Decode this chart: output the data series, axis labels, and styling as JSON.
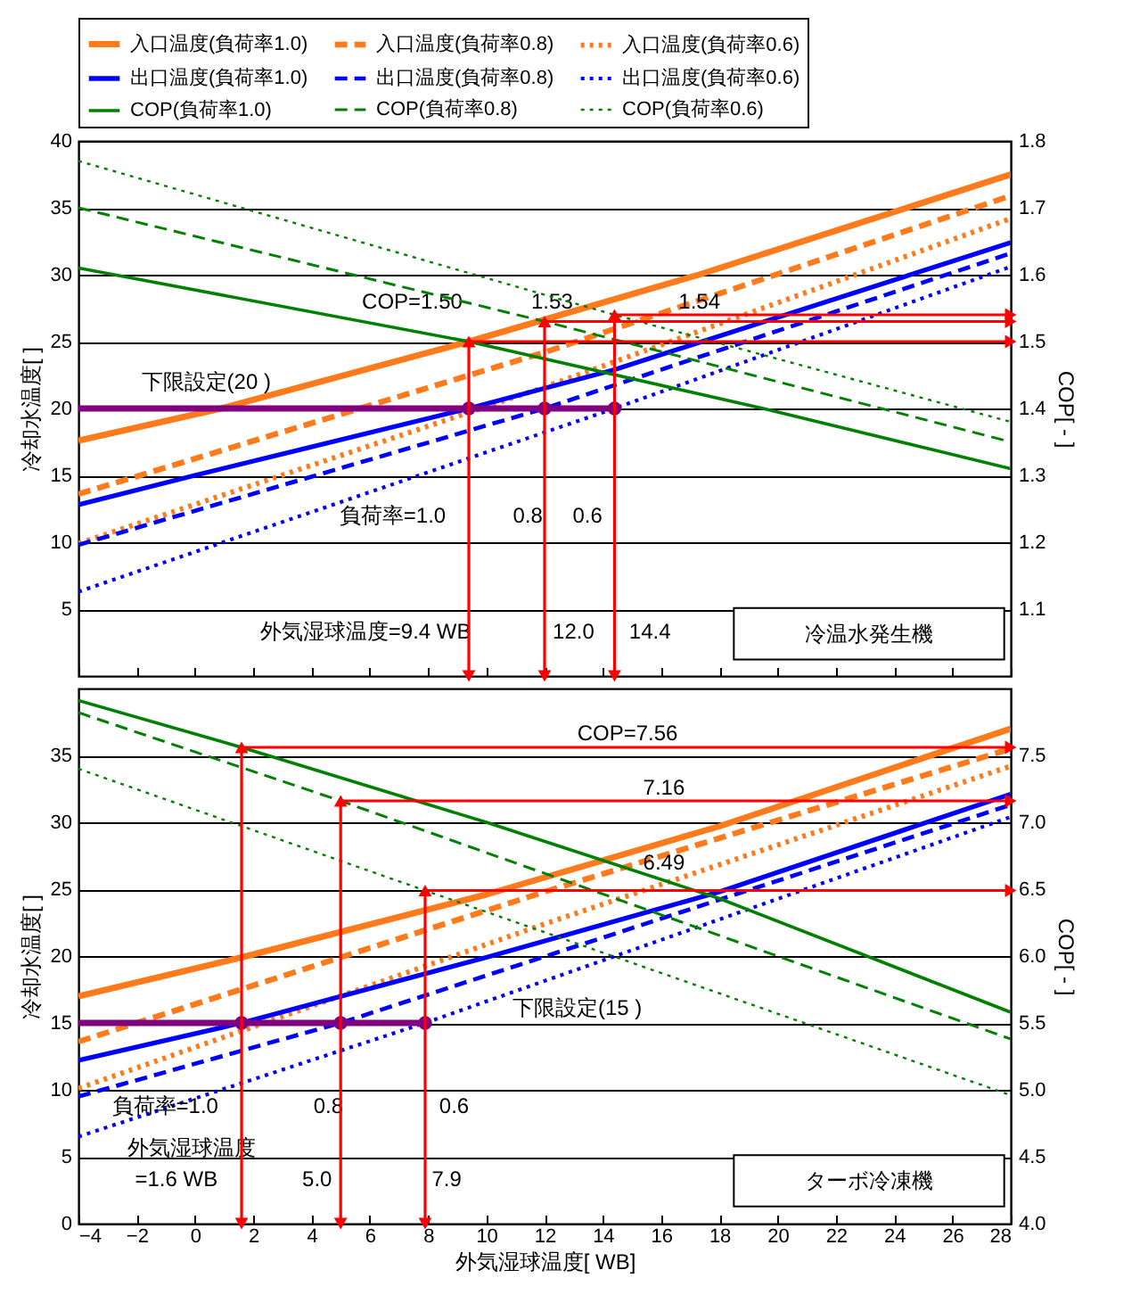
{
  "chart_data": [
    {
      "type": "line",
      "legend": "top",
      "grid": "y",
      "tick_labels": "y",
      "ylabel": "冷却水温度[ ]",
      "y2label": "COP[ - ]",
      "xlim": [
        -4,
        28
      ],
      "xticks": [
        -4,
        -2,
        0,
        2,
        4,
        6,
        8,
        10,
        12,
        14,
        16,
        18,
        20,
        22,
        24,
        26,
        28
      ],
      "ylim": [
        0,
        40
      ],
      "yticks": [
        5,
        10,
        15,
        20,
        25,
        30,
        35,
        40
      ],
      "y2lim": [
        1.0,
        1.8
      ],
      "y2ticks": [
        1.1,
        1.2,
        1.3,
        1.4,
        1.5,
        1.6,
        1.7,
        1.8
      ],
      "annotations": [
        "COP=1.50",
        "1.53",
        "1.54",
        "下限設定(20 )",
        "負荷率=1.0",
        "0.8",
        "0.6",
        "外気湿球温度=9.4 WB",
        "12.0",
        "14.4",
        "冷温水発生機"
      ],
      "series": [
        {
          "name": "入口温度(負荷率1.0)",
          "color": "#ff7a1a",
          "line_style": "solid",
          "x": [
            -4,
            0.9,
            9.4,
            17.3,
            28
          ],
          "values": [
            17.6,
            20,
            25,
            30,
            37.5
          ]
        },
        {
          "name": "入口温度(負荷率0.8)",
          "color": "#ff7a1a",
          "line_style": "dashed",
          "x": [
            -4,
            12,
            28
          ],
          "values": [
            13.6,
            24.2,
            35.9
          ]
        },
        {
          "name": "入口温度(負荷率0.6)",
          "color": "#ff7a1a",
          "line_style": "dotted",
          "x": [
            -4,
            12,
            28
          ],
          "values": [
            9.9,
            21.6,
            34.2
          ]
        },
        {
          "name": "出口温度(負荷率1.0)",
          "color": "#0000ff",
          "line_style": "solid",
          "x": [
            -4,
            0,
            9.4,
            14.4,
            28
          ],
          "values": [
            12.8,
            15,
            20,
            22.9,
            32.4
          ]
        },
        {
          "name": "出口温度(負荷率0.8)",
          "color": "#0000ff",
          "line_style": "dashed",
          "x": [
            -4,
            12,
            28
          ],
          "values": [
            9.8,
            20,
            31.6
          ]
        },
        {
          "name": "出口温度(負荷率0.6)",
          "color": "#0000ff",
          "line_style": "dotted",
          "x": [
            -4,
            14.4,
            28
          ],
          "values": [
            6.3,
            20,
            30.6
          ]
        },
        {
          "name": "COP(負荷率1.0)",
          "color": "#008000",
          "line_style": "solid",
          "axis": "y2",
          "x": [
            -4,
            9.4,
            19.5,
            28
          ],
          "values": [
            1.61,
            1.5,
            1.4,
            1.31
          ]
        },
        {
          "name": "COP(負荷率0.8)",
          "color": "#008000",
          "line_style": "dashed",
          "axis": "y2",
          "x": [
            -4,
            12,
            28
          ],
          "values": [
            1.7,
            1.53,
            1.35
          ]
        },
        {
          "name": "COP(負荷率0.6)",
          "color": "#008000",
          "line_style": "dotted",
          "axis": "y2",
          "x": [
            -4,
            14.4,
            28
          ],
          "values": [
            1.77,
            1.54,
            1.38
          ]
        },
        {
          "color": "#800080",
          "line_style": "solid",
          "x": [
            -4,
            14.4
          ],
          "values": [
            20,
            20
          ]
        },
        {
          "type": "scatter",
          "color": "#800080",
          "marker": "circle",
          "x": [
            9.4,
            12.0,
            14.4
          ],
          "values": [
            20,
            20,
            20
          ]
        }
      ]
    },
    {
      "type": "line",
      "grid": "y",
      "xlabel": "外気湿球温度[ WB]",
      "ylabel": "冷却水温度[ ]",
      "y2label": "COP[ - ]",
      "xlim": [
        -4,
        28
      ],
      "xticks": [
        -4,
        -2,
        0,
        2,
        4,
        6,
        8,
        10,
        12,
        14,
        16,
        18,
        20,
        22,
        24,
        26,
        28
      ],
      "ylim": [
        0,
        40
      ],
      "yticks": [
        0,
        5,
        10,
        15,
        20,
        25,
        30,
        35
      ],
      "y2lim": [
        4.0,
        8.0
      ],
      "y2ticks": [
        {
          "value": 4,
          "label": "4.0"
        },
        4.5,
        {
          "value": 5,
          "label": "5.0"
        },
        5.5,
        {
          "value": 6,
          "label": "6.0"
        },
        6.5,
        {
          "value": 7,
          "label": "7.0"
        },
        7.5
      ],
      "annotations": [
        "COP=7.56",
        "7.16",
        "6.49",
        "下限設定(15 )",
        "負荷率=1.0",
        "0.8",
        "0.6",
        "外気湿球温度",
        "=1.6 WB",
        "5.0",
        "7.9",
        "ターボ冷凍機"
      ],
      "series": [
        {
          "name": "入口温度(負荷率1.0)",
          "color": "#ff7a1a",
          "line_style": "solid",
          "x": [
            -4,
            1.6,
            10,
            18,
            28
          ],
          "values": [
            17.0,
            19.9,
            24.6,
            29.7,
            37.0
          ]
        },
        {
          "name": "入口温度(負荷率0.8)",
          "color": "#ff7a1a",
          "line_style": "dashed",
          "x": [
            -4,
            12,
            28
          ],
          "values": [
            13.6,
            24.8,
            35.5
          ]
        },
        {
          "name": "入口温度(負荷率0.6)",
          "color": "#ff7a1a",
          "line_style": "dotted",
          "x": [
            -4,
            12,
            28
          ],
          "values": [
            10.1,
            22.4,
            34.2
          ]
        },
        {
          "name": "出口温度(負荷率1.0)",
          "color": "#0000ff",
          "line_style": "solid",
          "x": [
            -4,
            1.6,
            10,
            18,
            28
          ],
          "values": [
            12.2,
            15,
            19.9,
            24.8,
            32.1
          ]
        },
        {
          "name": "出口温度(負荷率0.8)",
          "color": "#0000ff",
          "line_style": "dashed",
          "x": [
            -4,
            5,
            28
          ],
          "values": [
            9.5,
            15,
            31.3
          ]
        },
        {
          "name": "出口温度(負荷率0.6)",
          "color": "#0000ff",
          "line_style": "dotted",
          "x": [
            -4,
            7.9,
            28
          ],
          "values": [
            6.5,
            15,
            30.4
          ]
        },
        {
          "name": "COP(負荷率1.0)",
          "color": "#008000",
          "line_style": "solid",
          "axis": "y2",
          "x": [
            -4,
            1.6,
            10,
            18,
            28
          ],
          "values": [
            7.91,
            7.56,
            7.0,
            6.43,
            5.58
          ]
        },
        {
          "name": "COP(負荷率0.8)",
          "color": "#008000",
          "line_style": "dashed",
          "axis": "y2",
          "x": [
            -4,
            5,
            28
          ],
          "values": [
            7.82,
            7.16,
            5.38
          ]
        },
        {
          "name": "COP(負荷率0.6)",
          "color": "#008000",
          "line_style": "dotted",
          "axis": "y2",
          "x": [
            -4,
            7.9,
            28
          ],
          "values": [
            7.4,
            6.49,
            4.96
          ]
        },
        {
          "color": "#800080",
          "line_style": "solid",
          "x": [
            -4,
            7.9
          ],
          "values": [
            15,
            15
          ]
        },
        {
          "type": "scatter",
          "color": "#800080",
          "marker": "circle",
          "x": [
            1.6,
            5.0,
            7.9
          ],
          "values": [
            15,
            15,
            15
          ]
        }
      ]
    }
  ]
}
